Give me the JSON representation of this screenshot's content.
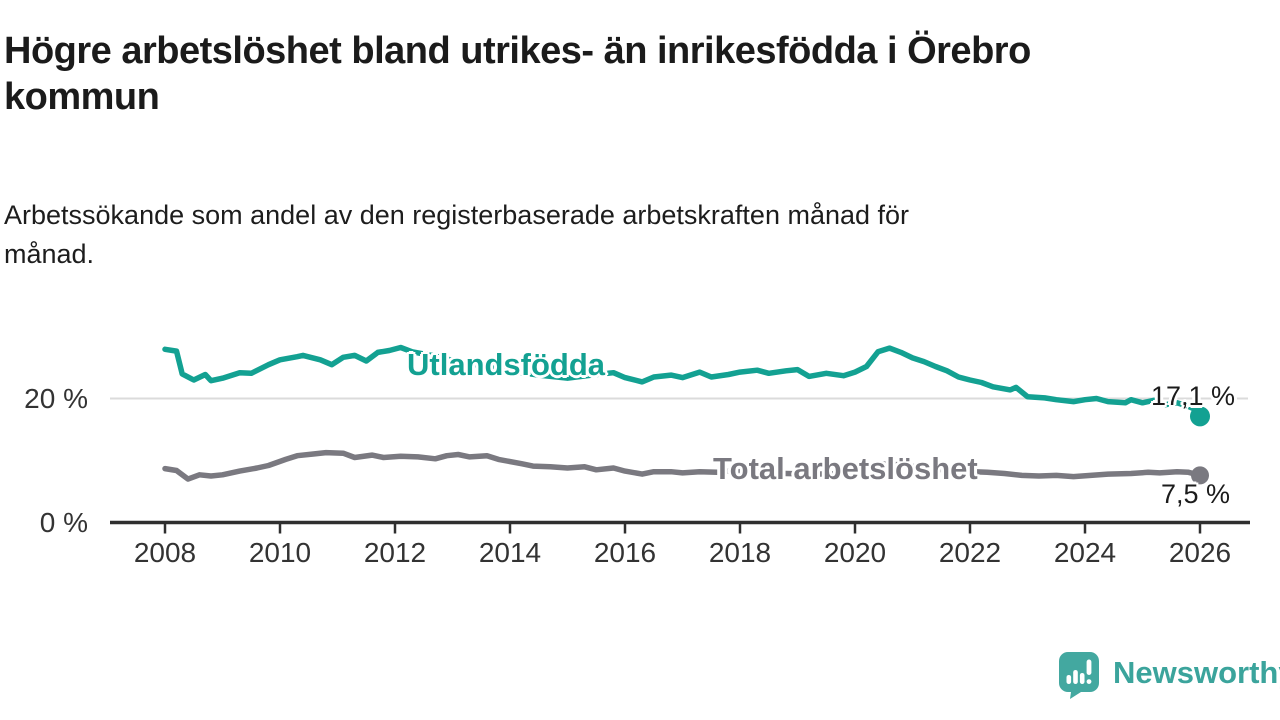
{
  "chart_data": {
    "type": "line",
    "title": "Högre arbetslöshet bland utrikes- än inrikesfödda i Örebro kommun",
    "title_lines": [
      "Högre arbetslöshet bland utrikes- än inrikesfödda i Örebro",
      "kommun"
    ],
    "subtitle": "Arbetssökande som andel av den registerbaserade arbetskraften månad för månad.",
    "subtitle_lines": [
      "Arbetssökande som andel av den registerbaserade arbetskraften månad för",
      "månad."
    ],
    "x_unit": "year",
    "xlim": [
      2008,
      2026
    ],
    "ylim": [
      0,
      31
    ],
    "x_ticks": [
      2008,
      2010,
      2012,
      2014,
      2016,
      2018,
      2020,
      2022,
      2024,
      2026
    ],
    "y_ticks": [
      {
        "value": 0,
        "label": "0 %"
      },
      {
        "value": 20,
        "label": "20 %"
      }
    ],
    "gridlines": [
      20
    ],
    "unit": "%",
    "legend_position": "inline-on-line",
    "colors": {
      "axis": "#2f2f2f",
      "grid": "#dbdbdb",
      "tick_text": "#333333",
      "text": "#1b1b1b"
    },
    "series": [
      {
        "name": "Utlandsfödda",
        "color": "#13a192",
        "end_value": 17.1,
        "end_label": "17,1 %",
        "points": [
          [
            2008.0,
            28.0
          ],
          [
            2008.2,
            27.7
          ],
          [
            2008.3,
            24.0
          ],
          [
            2008.5,
            23.0
          ],
          [
            2008.7,
            23.9
          ],
          [
            2008.8,
            22.9
          ],
          [
            2009.0,
            23.3
          ],
          [
            2009.3,
            24.2
          ],
          [
            2009.5,
            24.1
          ],
          [
            2009.8,
            25.5
          ],
          [
            2010.0,
            26.3
          ],
          [
            2010.3,
            26.8
          ],
          [
            2010.4,
            27.0
          ],
          [
            2010.7,
            26.3
          ],
          [
            2010.9,
            25.5
          ],
          [
            2011.1,
            26.7
          ],
          [
            2011.3,
            27.0
          ],
          [
            2011.5,
            26.1
          ],
          [
            2011.7,
            27.5
          ],
          [
            2011.9,
            27.8
          ],
          [
            2012.1,
            28.3
          ],
          [
            2012.3,
            27.6
          ],
          [
            2012.7,
            26.9
          ],
          [
            2013.0,
            26.2
          ],
          [
            2013.5,
            25.3
          ],
          [
            2014.0,
            24.5
          ],
          [
            2014.5,
            23.8
          ],
          [
            2015.0,
            23.3
          ],
          [
            2015.5,
            23.9
          ],
          [
            2015.8,
            24.2
          ],
          [
            2016.0,
            23.4
          ],
          [
            2016.3,
            22.7
          ],
          [
            2016.5,
            23.5
          ],
          [
            2016.8,
            23.8
          ],
          [
            2017.0,
            23.4
          ],
          [
            2017.3,
            24.3
          ],
          [
            2017.5,
            23.5
          ],
          [
            2017.8,
            23.9
          ],
          [
            2018.0,
            24.3
          ],
          [
            2018.3,
            24.6
          ],
          [
            2018.5,
            24.1
          ],
          [
            2018.8,
            24.5
          ],
          [
            2019.0,
            24.7
          ],
          [
            2019.2,
            23.6
          ],
          [
            2019.5,
            24.1
          ],
          [
            2019.8,
            23.7
          ],
          [
            2020.0,
            24.3
          ],
          [
            2020.2,
            25.2
          ],
          [
            2020.4,
            27.6
          ],
          [
            2020.6,
            28.2
          ],
          [
            2020.8,
            27.5
          ],
          [
            2021.0,
            26.6
          ],
          [
            2021.2,
            26.0
          ],
          [
            2021.4,
            25.2
          ],
          [
            2021.6,
            24.5
          ],
          [
            2021.8,
            23.5
          ],
          [
            2022.0,
            23.0
          ],
          [
            2022.2,
            22.6
          ],
          [
            2022.4,
            21.9
          ],
          [
            2022.7,
            21.4
          ],
          [
            2022.8,
            21.8
          ],
          [
            2023.0,
            20.3
          ],
          [
            2023.3,
            20.1
          ],
          [
            2023.5,
            19.8
          ],
          [
            2023.8,
            19.5
          ],
          [
            2024.0,
            19.8
          ],
          [
            2024.2,
            20.0
          ],
          [
            2024.4,
            19.5
          ],
          [
            2024.7,
            19.3
          ],
          [
            2024.8,
            19.8
          ],
          [
            2025.0,
            19.3
          ],
          [
            2025.2,
            19.7
          ],
          [
            2025.4,
            19.0
          ],
          [
            2025.6,
            19.3
          ],
          [
            2025.8,
            18.7
          ],
          [
            2025.9,
            18.3
          ],
          [
            2026.0,
            17.1
          ]
        ]
      },
      {
        "name": "Total arbetslöshet",
        "color": "#7a7980",
        "end_value": 7.5,
        "end_label": "7,5 %",
        "points": [
          [
            2008.0,
            8.6
          ],
          [
            2008.2,
            8.3
          ],
          [
            2008.4,
            6.9
          ],
          [
            2008.6,
            7.6
          ],
          [
            2008.8,
            7.4
          ],
          [
            2009.0,
            7.6
          ],
          [
            2009.3,
            8.2
          ],
          [
            2009.6,
            8.7
          ],
          [
            2009.8,
            9.1
          ],
          [
            2010.1,
            10.1
          ],
          [
            2010.3,
            10.7
          ],
          [
            2010.6,
            11.0
          ],
          [
            2010.8,
            11.2
          ],
          [
            2011.1,
            11.1
          ],
          [
            2011.3,
            10.4
          ],
          [
            2011.6,
            10.8
          ],
          [
            2011.8,
            10.4
          ],
          [
            2012.1,
            10.6
          ],
          [
            2012.4,
            10.5
          ],
          [
            2012.7,
            10.2
          ],
          [
            2012.9,
            10.7
          ],
          [
            2013.1,
            10.9
          ],
          [
            2013.3,
            10.5
          ],
          [
            2013.6,
            10.7
          ],
          [
            2013.8,
            10.1
          ],
          [
            2014.2,
            9.4
          ],
          [
            2014.4,
            9.0
          ],
          [
            2014.7,
            8.9
          ],
          [
            2015.0,
            8.7
          ],
          [
            2015.3,
            8.9
          ],
          [
            2015.5,
            8.4
          ],
          [
            2015.8,
            8.7
          ],
          [
            2016.0,
            8.2
          ],
          [
            2016.3,
            7.7
          ],
          [
            2016.5,
            8.1
          ],
          [
            2016.8,
            8.1
          ],
          [
            2017.0,
            7.9
          ],
          [
            2017.3,
            8.1
          ],
          [
            2017.6,
            8.0
          ],
          [
            2017.8,
            8.2
          ],
          [
            2018.3,
            8.0
          ],
          [
            2018.8,
            7.8
          ],
          [
            2019.3,
            7.7
          ],
          [
            2019.8,
            7.8
          ],
          [
            2020.0,
            8.2
          ],
          [
            2020.4,
            9.4
          ],
          [
            2020.8,
            9.2
          ],
          [
            2021.3,
            8.6
          ],
          [
            2021.8,
            8.2
          ],
          [
            2022.3,
            8.0
          ],
          [
            2022.6,
            7.8
          ],
          [
            2022.9,
            7.5
          ],
          [
            2023.2,
            7.4
          ],
          [
            2023.5,
            7.5
          ],
          [
            2023.8,
            7.3
          ],
          [
            2024.1,
            7.5
          ],
          [
            2024.4,
            7.7
          ],
          [
            2024.8,
            7.8
          ],
          [
            2025.1,
            8.0
          ],
          [
            2025.3,
            7.9
          ],
          [
            2025.6,
            8.1
          ],
          [
            2025.8,
            8.0
          ],
          [
            2026.0,
            7.5
          ]
        ]
      }
    ]
  },
  "logo": {
    "text": "Newsworthy",
    "color": "#3ba49c",
    "icon": "newsworthy-speech-bubble-bar-chart-icon"
  }
}
